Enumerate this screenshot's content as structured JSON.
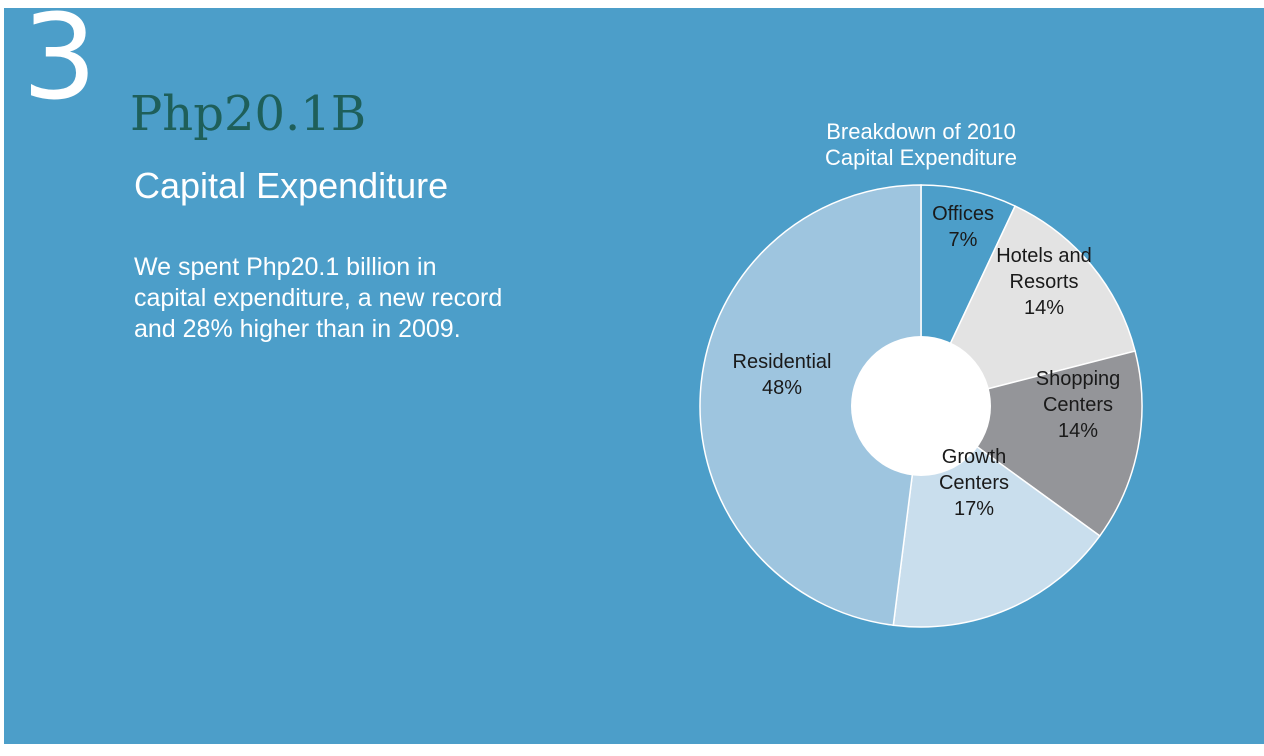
{
  "colors": {
    "background": "#4c9ec9",
    "headline_figure": "#1e5f5a",
    "text": "#ffffff",
    "slice_border": "#ffffff"
  },
  "section_number": "3",
  "headline": {
    "figure": "Php20.1B",
    "caption": "Capital Expenditure"
  },
  "body_lines": [
    "We spent Php20.1 billion in",
    "capital expenditure, a new record",
    "and 28% higher than in 2009."
  ],
  "chart_data": {
    "type": "pie",
    "donut": true,
    "title_lines": [
      "Breakdown of 2010",
      "Capital Expenditure"
    ],
    "unit": "%",
    "slices": [
      {
        "label_lines": [
          "Offices"
        ],
        "value_label": "7%",
        "value": 7,
        "color": "#4c9ec9"
      },
      {
        "label_lines": [
          "Hotels and",
          "Resorts"
        ],
        "value_label": "14%",
        "value": 14,
        "color": "#e3e3e3"
      },
      {
        "label_lines": [
          "Shopping",
          "Centers"
        ],
        "value_label": "14%",
        "value": 14,
        "color": "#949599"
      },
      {
        "label_lines": [
          "Growth",
          "Centers"
        ],
        "value_label": "17%",
        "value": 17,
        "color": "#c9deed"
      },
      {
        "label_lines": [
          "Residential"
        ],
        "value_label": "48%",
        "value": 48,
        "color": "#9ec5df"
      }
    ]
  }
}
